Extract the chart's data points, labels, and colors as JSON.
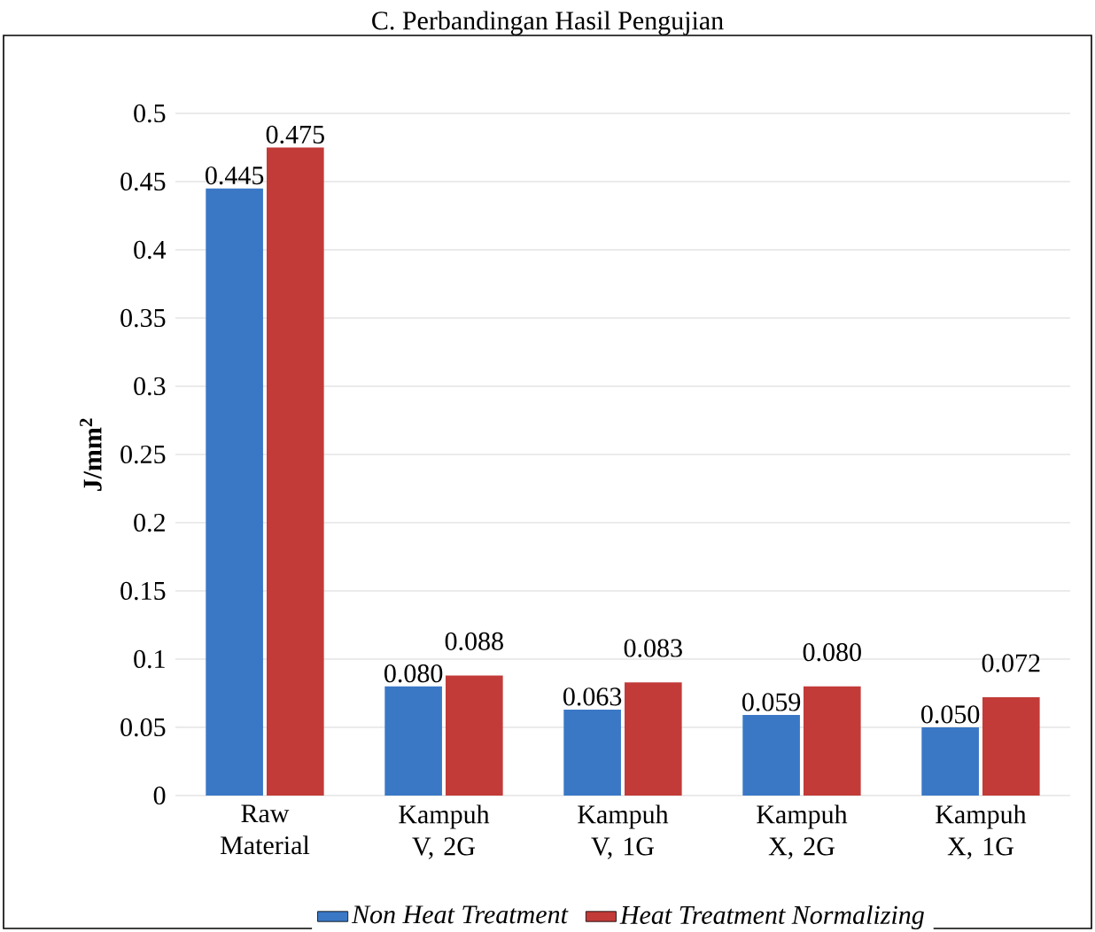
{
  "chart_data": {
    "type": "bar",
    "title": "C.  Perbandingan Hasil Pengujian",
    "categories": [
      "Raw Material",
      "Kampuh V, 2G",
      "Kampuh V, 1G",
      "Kampuh X, 2G",
      "Kampuh X, 1G"
    ],
    "ylabel": "J/mm$^{2}$",
    "series": [
      {
        "name": "Non Heat Treatment",
        "color": "#3a78c6",
        "values": [
          0.445,
          0.08,
          0.063,
          0.059,
          0.05
        ],
        "value_labels": [
          "0.445",
          "0.080",
          "0.063",
          "0.059",
          "0.050"
        ]
      },
      {
        "name": "Heat Treatment Normalizing",
        "color": "#c23b38",
        "values": [
          0.475,
          0.088,
          0.083,
          0.08,
          0.072
        ],
        "value_labels": [
          "0.475",
          "0.088",
          "0.083",
          "0.080",
          "0.072"
        ]
      }
    ],
    "ylim": [
      0,
      0.5
    ],
    "yticks": [
      0,
      0.05,
      0.1,
      0.15,
      0.2,
      0.25,
      0.3,
      0.35,
      0.4,
      0.45,
      0.5
    ],
    "grid": "y",
    "legend": "bottom"
  }
}
